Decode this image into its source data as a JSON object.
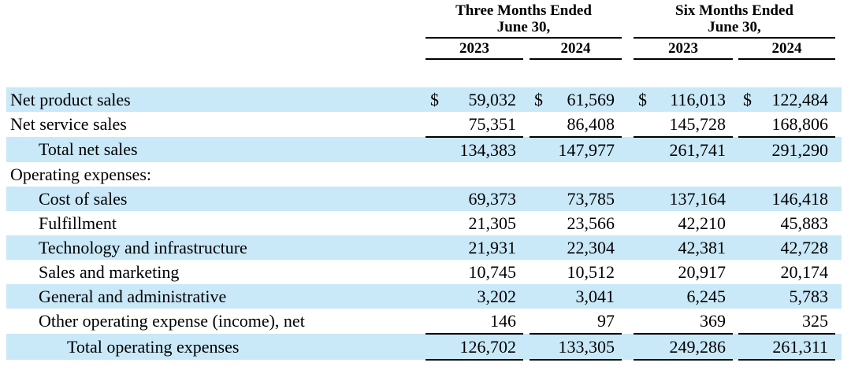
{
  "table": {
    "currency_symbol": "$",
    "header": {
      "groups": [
        {
          "line1": "Three Months Ended",
          "line2": "June 30,",
          "years": [
            "2023",
            "2024"
          ]
        },
        {
          "line1": "Six Months Ended",
          "line2": "June 30,",
          "years": [
            "2023",
            "2024"
          ]
        }
      ]
    },
    "rows": [
      {
        "label": "Net product sales",
        "indent": 0,
        "dollar": true,
        "shaded": true,
        "underline_below": false,
        "values": [
          "59,032",
          "61,569",
          "116,013",
          "122,484"
        ]
      },
      {
        "label": "Net service sales",
        "indent": 0,
        "dollar": false,
        "shaded": false,
        "underline_below": true,
        "values": [
          "75,351",
          "86,408",
          "145,728",
          "168,806"
        ]
      },
      {
        "label": "Total net sales",
        "indent": 1,
        "dollar": false,
        "shaded": true,
        "underline_below": false,
        "values": [
          "134,383",
          "147,977",
          "261,741",
          "291,290"
        ]
      },
      {
        "label": "Operating expenses:",
        "indent": 0,
        "dollar": false,
        "shaded": false,
        "underline_below": false,
        "values": [
          "",
          "",
          "",
          ""
        ]
      },
      {
        "label": "Cost of sales",
        "indent": 1,
        "dollar": false,
        "shaded": true,
        "underline_below": false,
        "values": [
          "69,373",
          "73,785",
          "137,164",
          "146,418"
        ]
      },
      {
        "label": "Fulfillment",
        "indent": 1,
        "dollar": false,
        "shaded": false,
        "underline_below": false,
        "values": [
          "21,305",
          "23,566",
          "42,210",
          "45,883"
        ]
      },
      {
        "label": "Technology and infrastructure",
        "indent": 1,
        "dollar": false,
        "shaded": true,
        "underline_below": false,
        "values": [
          "21,931",
          "22,304",
          "42,381",
          "42,728"
        ]
      },
      {
        "label": "Sales and marketing",
        "indent": 1,
        "dollar": false,
        "shaded": false,
        "underline_below": false,
        "values": [
          "10,745",
          "10,512",
          "20,917",
          "20,174"
        ]
      },
      {
        "label": "General and administrative",
        "indent": 1,
        "dollar": false,
        "shaded": true,
        "underline_below": false,
        "values": [
          "3,202",
          "3,041",
          "6,245",
          "5,783"
        ]
      },
      {
        "label": "Other operating expense (income), net",
        "indent": 1,
        "dollar": false,
        "shaded": false,
        "underline_below": true,
        "values": [
          "146",
          "97",
          "369",
          "325"
        ]
      },
      {
        "label": "Total operating expenses",
        "indent": 2,
        "dollar": false,
        "shaded": true,
        "underline_below": true,
        "values": [
          "126,702",
          "133,305",
          "249,286",
          "261,311"
        ]
      }
    ],
    "colors": {
      "shaded_row": "#c9e8f8",
      "text": "#000000",
      "rule": "#000000",
      "background": "#ffffff"
    }
  }
}
